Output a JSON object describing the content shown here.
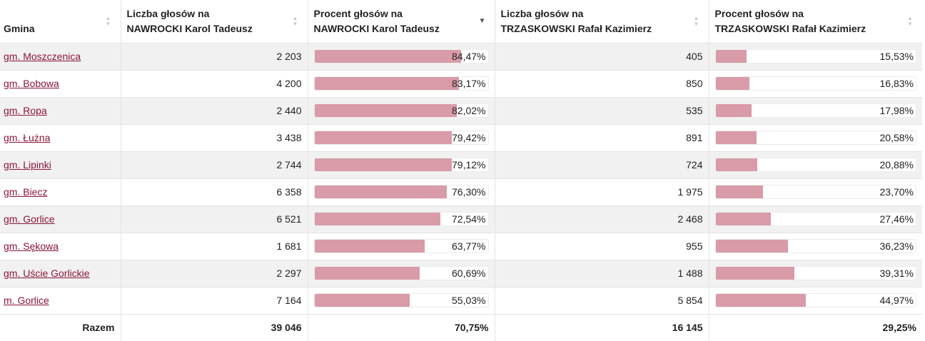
{
  "columns": [
    {
      "label": "Gmina",
      "sort": "none"
    },
    {
      "label": "Liczba głosów na\nNAWROCKI Karol Tadeusz",
      "sort": "none"
    },
    {
      "label": "Procent głosów na\nNAWROCKI Karol Tadeusz",
      "sort": "desc"
    },
    {
      "label": "Liczba głosów na\nTRZASKOWSKI Rafał Kazimierz",
      "sort": "none"
    },
    {
      "label": "Procent głosów na\nTRZASKOWSKI Rafał Kazimierz",
      "sort": "none"
    }
  ],
  "rows": [
    {
      "gmina": "gm. Moszczenica",
      "nawrocki_votes": "2 203",
      "nawrocki_pct": "84,47%",
      "nawrocki_pct_value": 84.47,
      "trzaskowski_votes": "405",
      "trzaskowski_pct": "15,53%",
      "trzaskowski_pct_value": 15.53
    },
    {
      "gmina": "gm. Bobowa",
      "nawrocki_votes": "4 200",
      "nawrocki_pct": "83,17%",
      "nawrocki_pct_value": 83.17,
      "trzaskowski_votes": "850",
      "trzaskowski_pct": "16,83%",
      "trzaskowski_pct_value": 16.83
    },
    {
      "gmina": "gm. Ropa",
      "nawrocki_votes": "2 440",
      "nawrocki_pct": "82,02%",
      "nawrocki_pct_value": 82.02,
      "trzaskowski_votes": "535",
      "trzaskowski_pct": "17,98%",
      "trzaskowski_pct_value": 17.98
    },
    {
      "gmina": "gm. Łużna",
      "nawrocki_votes": "3 438",
      "nawrocki_pct": "79,42%",
      "nawrocki_pct_value": 79.42,
      "trzaskowski_votes": "891",
      "trzaskowski_pct": "20,58%",
      "trzaskowski_pct_value": 20.58
    },
    {
      "gmina": "gm. Lipinki",
      "nawrocki_votes": "2 744",
      "nawrocki_pct": "79,12%",
      "nawrocki_pct_value": 79.12,
      "trzaskowski_votes": "724",
      "trzaskowski_pct": "20,88%",
      "trzaskowski_pct_value": 20.88
    },
    {
      "gmina": "gm. Biecz",
      "nawrocki_votes": "6 358",
      "nawrocki_pct": "76,30%",
      "nawrocki_pct_value": 76.3,
      "trzaskowski_votes": "1 975",
      "trzaskowski_pct": "23,70%",
      "trzaskowski_pct_value": 23.7
    },
    {
      "gmina": "gm. Gorlice",
      "nawrocki_votes": "6 521",
      "nawrocki_pct": "72,54%",
      "nawrocki_pct_value": 72.54,
      "trzaskowski_votes": "2 468",
      "trzaskowski_pct": "27,46%",
      "trzaskowski_pct_value": 27.46
    },
    {
      "gmina": "gm. Sękowa",
      "nawrocki_votes": "1 681",
      "nawrocki_pct": "63,77%",
      "nawrocki_pct_value": 63.77,
      "trzaskowski_votes": "955",
      "trzaskowski_pct": "36,23%",
      "trzaskowski_pct_value": 36.23
    },
    {
      "gmina": "gm. Uście Gorlickie",
      "nawrocki_votes": "2 297",
      "nawrocki_pct": "60,69%",
      "nawrocki_pct_value": 60.69,
      "trzaskowski_votes": "1 488",
      "trzaskowski_pct": "39,31%",
      "trzaskowski_pct_value": 39.31
    },
    {
      "gmina": "m. Gorlice",
      "nawrocki_votes": "7 164",
      "nawrocki_pct": "55,03%",
      "nawrocki_pct_value": 55.03,
      "trzaskowski_votes": "5 854",
      "trzaskowski_pct": "44,97%",
      "trzaskowski_pct_value": 44.97
    }
  ],
  "totals": {
    "label": "Razem",
    "nawrocki_votes": "39 046",
    "nawrocki_pct": "70,75%",
    "trzaskowski_votes": "16 145",
    "trzaskowski_pct": "29,25%"
  },
  "colors": {
    "bar_fill": "#d99ba8",
    "link": "#8a1538",
    "stripe": "#f1f1f1"
  },
  "icons": {
    "sort_none": "sort-arrows-icon",
    "sort_desc": "sort-descending-icon"
  }
}
